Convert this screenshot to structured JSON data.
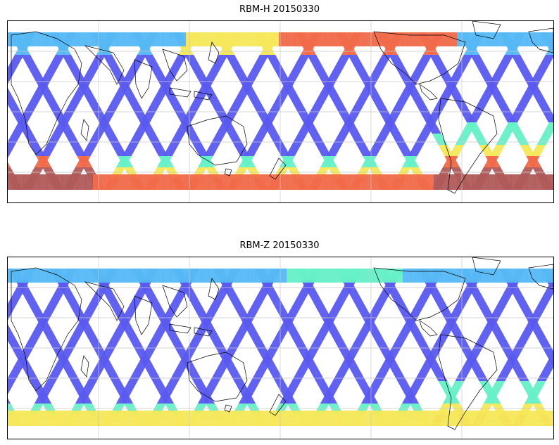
{
  "panels": [
    {
      "title": "RBM-H 20150330",
      "colormap": "jet",
      "high_values_regions": [
        "south-polar band",
        "far-south-atlantic",
        "north-pacific band (east)"
      ]
    },
    {
      "title": "RBM-Z 20150330",
      "colormap": "jet",
      "high_values_regions": [
        "south-atlantic (moderate)"
      ]
    }
  ],
  "map": {
    "projection": "plate-carree",
    "gridlines": true,
    "coastlines": true,
    "track_pattern": "crossing diagonal satellite swaths"
  },
  "colors": {
    "low": "#5a5af0",
    "mid_low": "#55b8f5",
    "mid": "#66f0c8",
    "mid_high": "#f5e85a",
    "high": "#f06a4a",
    "max": "#b05a5a",
    "coast": "#000000",
    "grid": "#c8c8c8"
  }
}
